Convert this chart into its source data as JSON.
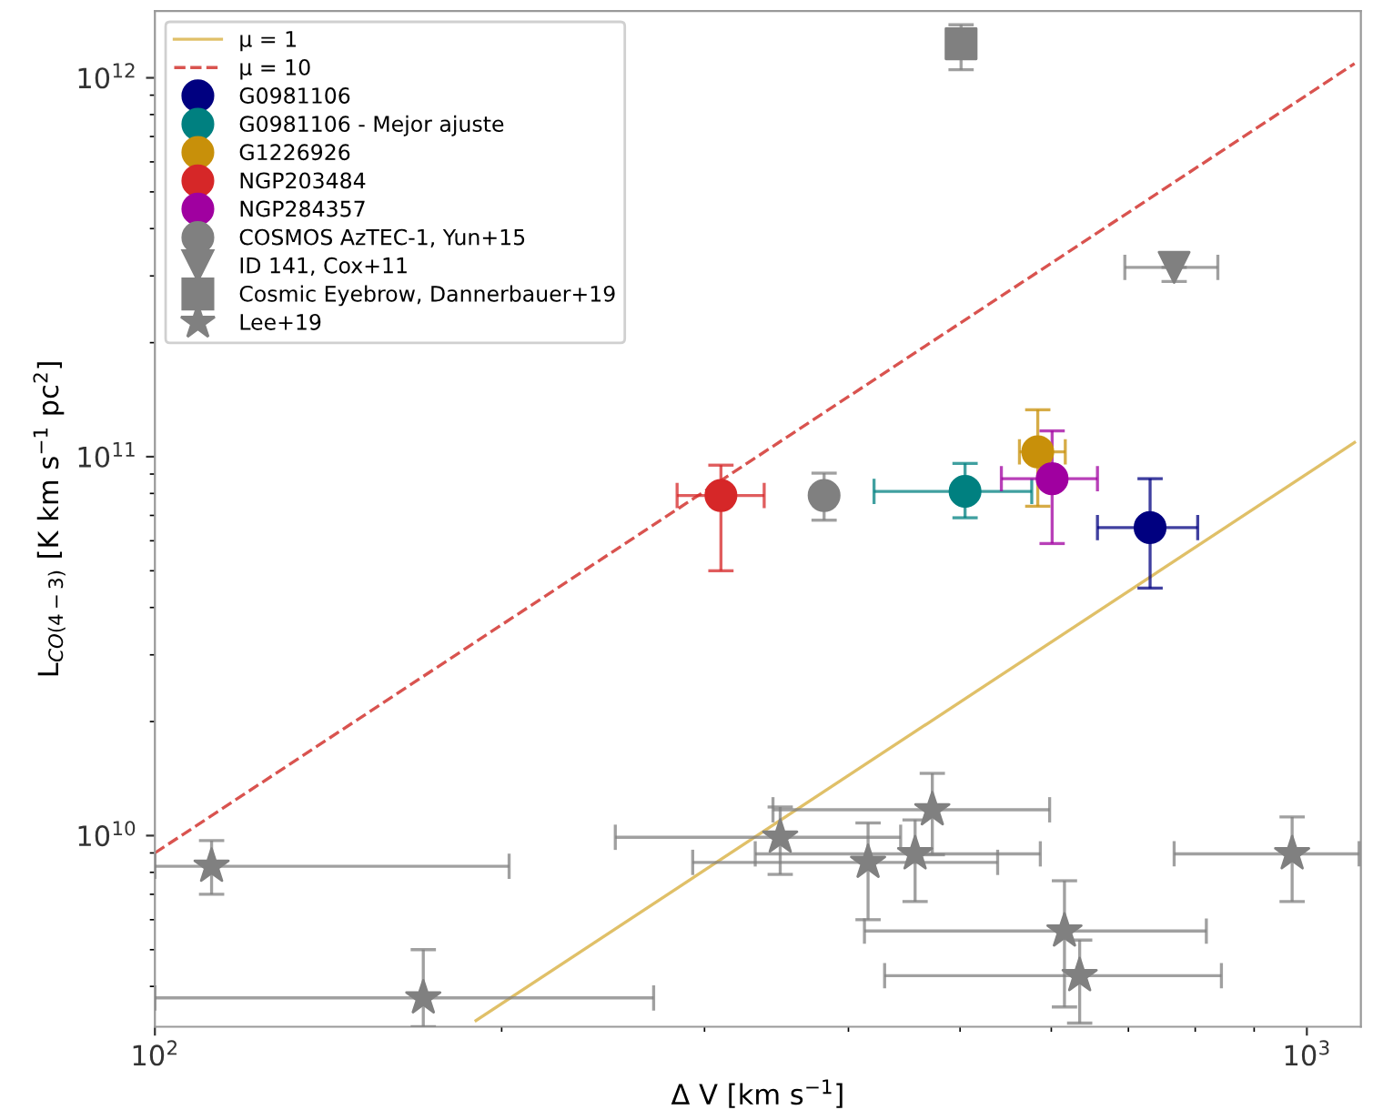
{
  "chart_data": {
    "type": "scatter",
    "xlabel": "Δ V [km s$^{−1}$]",
    "ylabel": "L$_{CO(4−3)}$ [K km s$^{−1}$ pc$^{2}$]",
    "log": "xy",
    "grid": false,
    "legend": "top left",
    "xlim": [
      100,
      1114
    ],
    "ylim": [
      3130000000,
      1500000000000
    ],
    "xticks": [
      {
        "value": 100,
        "label": "10$^{2}$"
      },
      {
        "value": 1000,
        "label": "10$^{3}$"
      }
    ],
    "yticks": [
      {
        "value": 10000000000,
        "label": "10$^{10}$"
      },
      {
        "value": 100000000000,
        "label": "10$^{11}$"
      },
      {
        "value": 1000000000000,
        "label": "10$^{12}$"
      }
    ],
    "series": [
      {
        "type": "line",
        "name": "μ = 1",
        "color": "#e0c068",
        "line_style": "solid",
        "marker": "none",
        "x": [
          190,
          1100
        ],
        "values": [
          3250000000,
          109000000000
        ]
      },
      {
        "type": "line",
        "name": "μ = 10",
        "color": "#d9534f",
        "line_style": "dashed",
        "marker": "none",
        "x": [
          100,
          1100
        ],
        "values": [
          9000000000,
          1090000000000
        ]
      },
      {
        "name": "G0981106",
        "color": "#000080",
        "marker": "circle",
        "x": [
          731
        ],
        "values": [
          65000000000
        ],
        "errors": [
          [
            45000000000,
            87500000000
          ]
        ],
        "xerrors": [
          [
            658,
            804
          ]
        ]
      },
      {
        "name": "G0981106 - Mejor ajuste",
        "color": "#008080",
        "marker": "circle",
        "x": [
          505
        ],
        "values": [
          81000000000
        ],
        "errors": [
          [
            69000000000,
            96000000000
          ]
        ],
        "xerrors": [
          [
            421,
            577
          ]
        ]
      },
      {
        "name": "G1226926",
        "color": "#c8900a",
        "marker": "circle",
        "x": [
          584
        ],
        "values": [
          103000000000
        ],
        "errors": [
          [
            74000000000,
            133000000000
          ]
        ],
        "xerrors": [
          [
            563,
            617
          ]
        ]
      },
      {
        "name": "NGP203484",
        "color": "#d62728",
        "marker": "circle",
        "x": [
          310
        ],
        "values": [
          79000000000
        ],
        "errors": [
          [
            50000000000,
            95000000000
          ]
        ],
        "xerrors": [
          [
            284,
            338
          ]
        ]
      },
      {
        "name": "NGP284357",
        "color": "#a000a0",
        "marker": "circle",
        "x": [
          601
        ],
        "values": [
          87500000000
        ],
        "errors": [
          [
            59000000000,
            117000000000
          ]
        ],
        "xerrors": [
          [
            543,
            658
          ]
        ]
      },
      {
        "name": "COSMOS AzTEC-1, Yun+15",
        "color": "#808080",
        "marker": "circle",
        "x": [
          381
        ],
        "values": [
          79000000000
        ],
        "errors": [
          [
            68000000000,
            90500000000
          ]
        ],
        "xerrors": [
          null
        ]
      },
      {
        "name": "ID 141, Cox+11",
        "color": "#808080",
        "marker": "triangle",
        "x": [
          767
        ],
        "values": [
          316000000000
        ],
        "errors": [
          [
            290000000000,
            316000000000
          ]
        ],
        "xerrors": [
          [
            695,
            837
          ]
        ]
      },
      {
        "name": "Cosmic Eyebrow, Dannerbauer+19",
        "color": "#808080",
        "marker": "square",
        "x": [
          501
        ],
        "values": [
          1230000000000
        ],
        "errors": [
          [
            1050000000000,
            1380000000000
          ]
        ],
        "xerrors": [
          null
        ]
      },
      {
        "name": "Lee+19",
        "color": "#808080",
        "marker": "star",
        "x": [
          112,
          171,
          349,
          416,
          457,
          473,
          616,
          635,
          971
        ],
        "values": [
          8300000000,
          3730000000,
          9900000000,
          8500000000,
          8950000000,
          11700000000,
          5600000000,
          4270000000,
          8950000000
        ],
        "errors": [
          [
            7000000000,
            9700000000
          ],
          [
            3130000000,
            5000000000
          ],
          [
            7900000000,
            11900000000
          ],
          [
            6000000000,
            10800000000
          ],
          [
            6700000000,
            11000000000
          ],
          [
            8900000000,
            14600000000
          ],
          [
            3530000000,
            7600000000
          ],
          [
            3200000000,
            5300000000
          ],
          [
            6700000000,
            11200000000
          ]
        ],
        "xerrors": [
          [
            100,
            203
          ],
          [
            100,
            271
          ],
          [
            251,
            444
          ],
          [
            293,
            539
          ],
          [
            332,
            587
          ],
          [
            344,
            598
          ],
          [
            413,
            818
          ],
          [
            430,
            843
          ],
          [
            767,
            1110
          ]
        ]
      }
    ]
  }
}
